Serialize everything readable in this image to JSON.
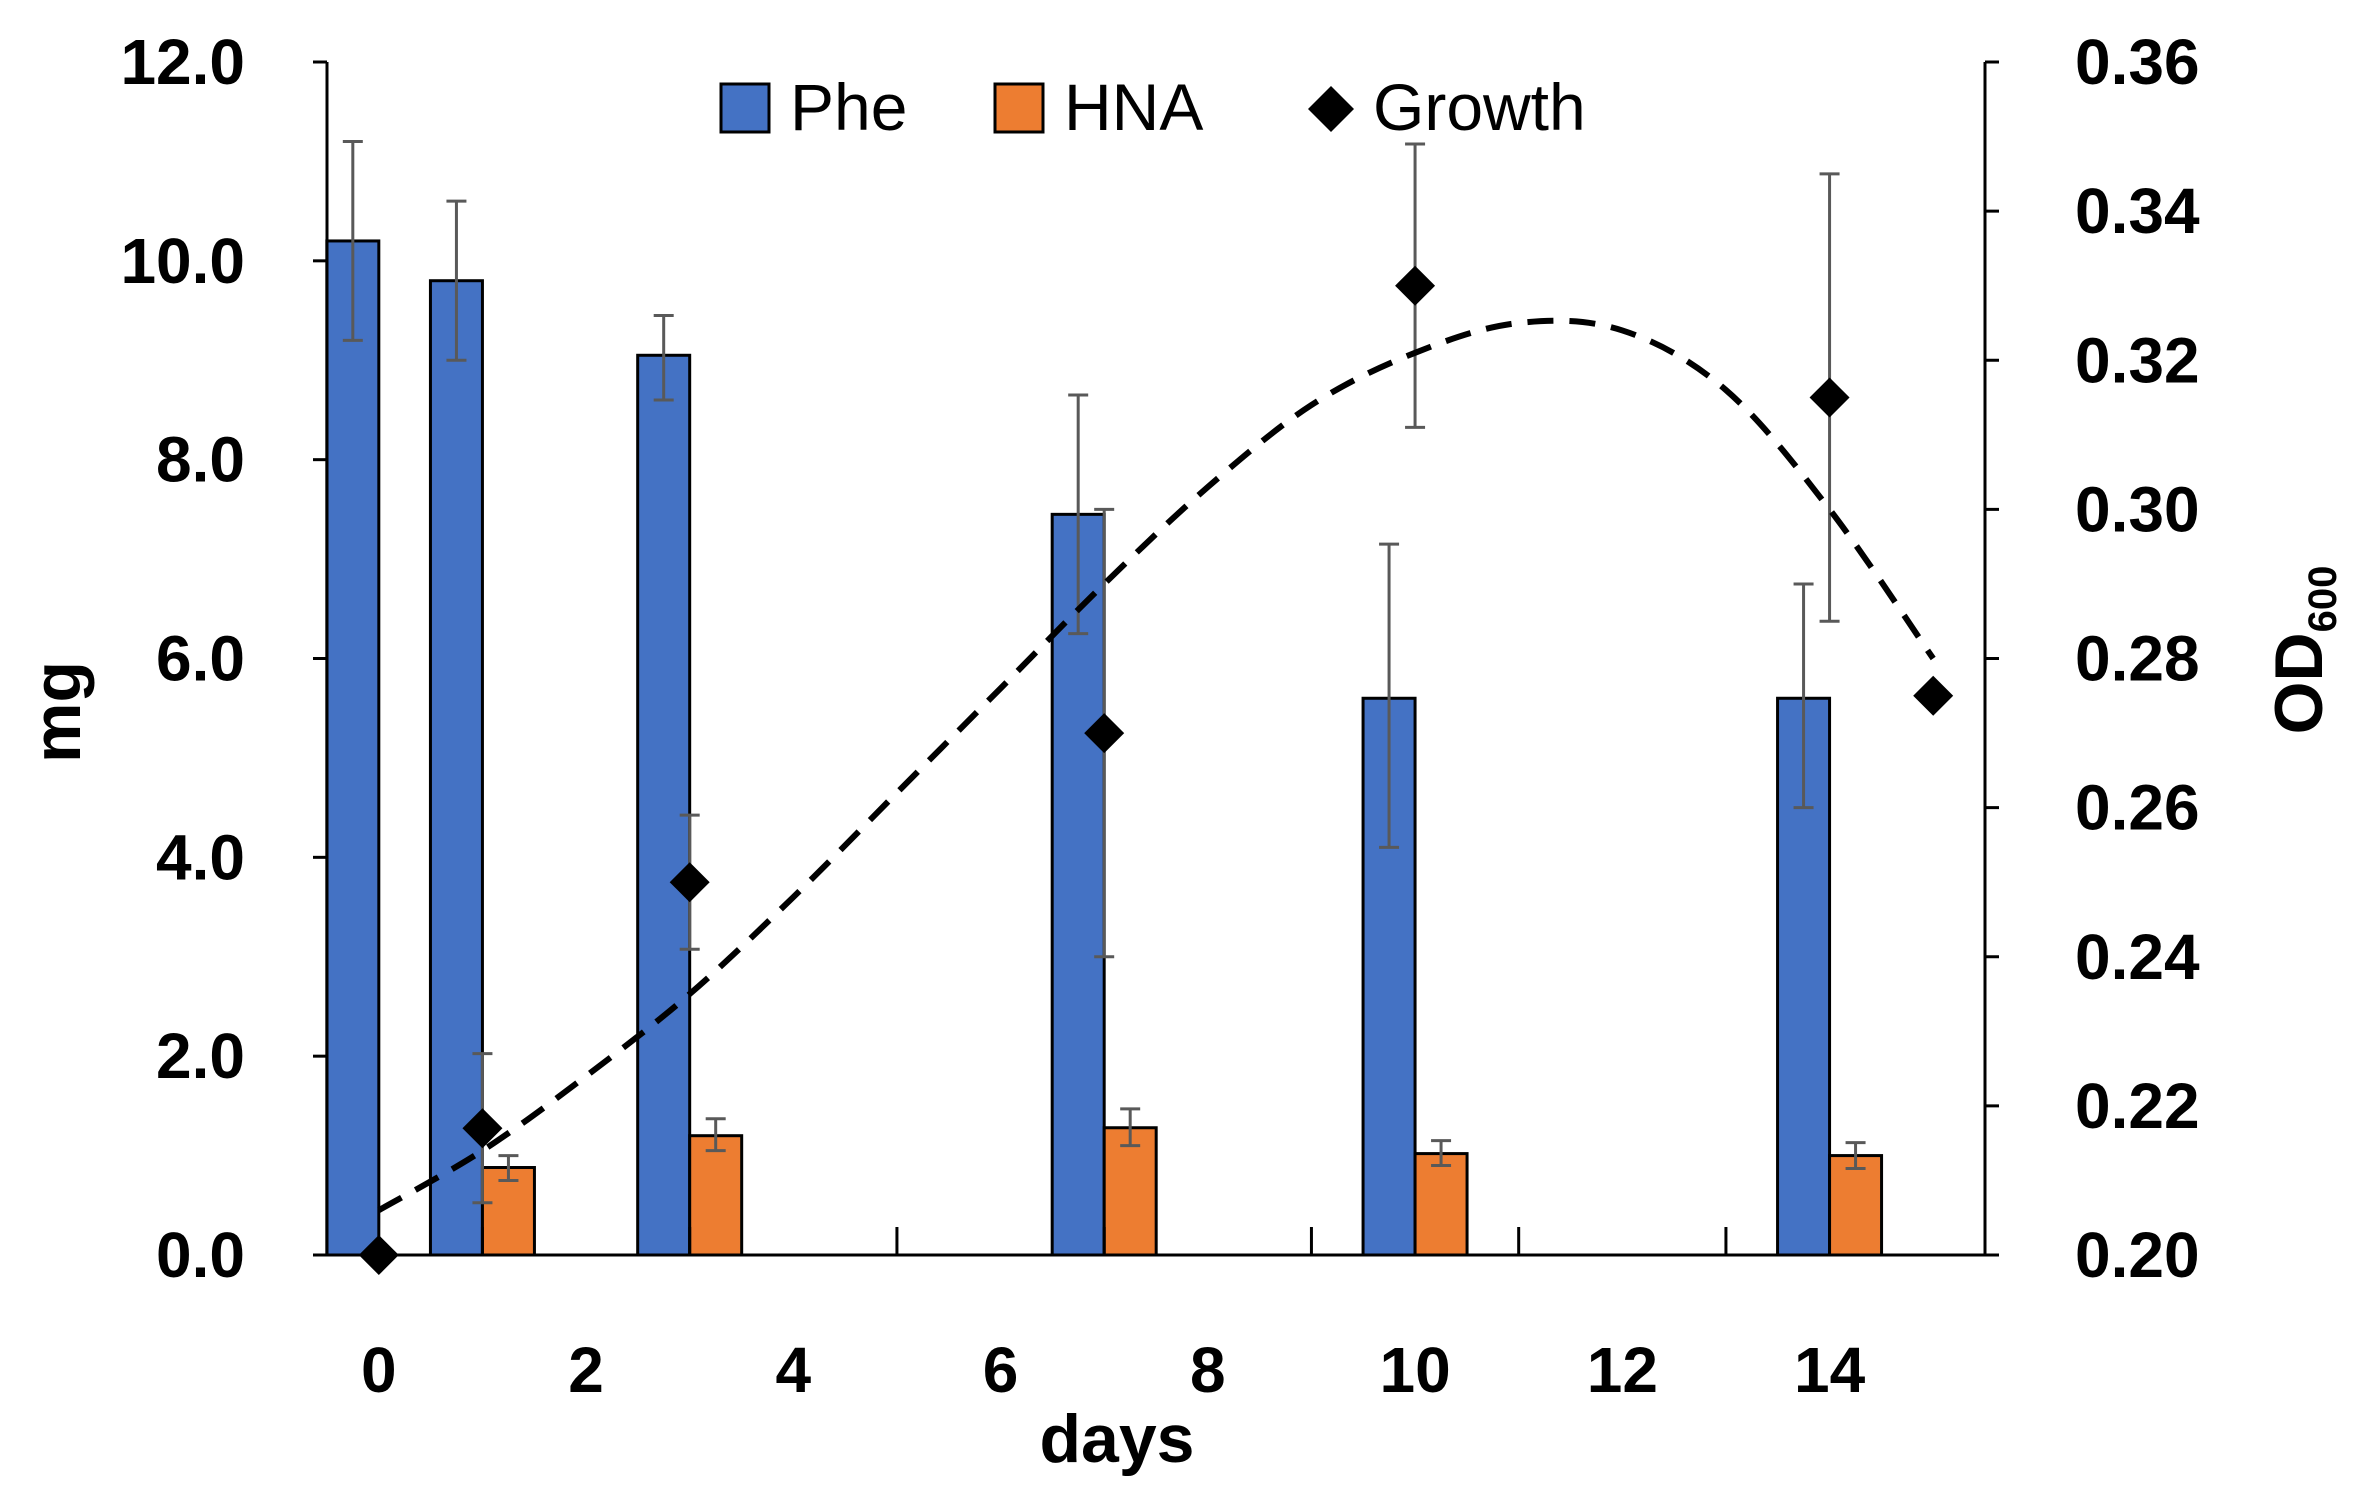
{
  "chart_data": {
    "type": "bar",
    "xlabel": "days",
    "ylabel": "mg",
    "y2label": {
      "main": "OD",
      "sub": "600"
    },
    "xlim": [
      -0.5,
      15.5
    ],
    "ylim": [
      0,
      12
    ],
    "y2lim": [
      0.2,
      0.36
    ],
    "x_ticks": [
      "0",
      "2",
      "4",
      "6",
      "8",
      "10",
      "12",
      "14"
    ],
    "y_ticks": [
      "0.0",
      "2.0",
      "4.0",
      "6.0",
      "8.0",
      "10.0",
      "12.0"
    ],
    "y2_ticks": [
      "0.20",
      "0.22",
      "0.24",
      "0.26",
      "0.28",
      "0.30",
      "0.32",
      "0.34",
      "0.36"
    ],
    "legend": {
      "position": "top-center",
      "items": [
        "Phe",
        "HNA",
        "Growth"
      ]
    },
    "colors": {
      "Phe": "#4472C4",
      "HNA": "#ED7D31",
      "Growth": "#000000",
      "error_bar": "#595959"
    },
    "series": [
      {
        "name": "Phe",
        "type": "bar",
        "axis": "left",
        "points": [
          {
            "x": 0,
            "y": 10.2,
            "err_low": 9.2,
            "err_high": 11.2
          },
          {
            "x": 1,
            "y": 9.8,
            "err_low": 9.0,
            "err_high": 10.6
          },
          {
            "x": 3,
            "y": 9.05,
            "err_low": 8.6,
            "err_high": 9.45
          },
          {
            "x": 7,
            "y": 7.45,
            "err_low": 6.25,
            "err_high": 8.65
          },
          {
            "x": 10,
            "y": 5.6,
            "err_low": 4.1,
            "err_high": 7.15
          },
          {
            "x": 14,
            "y": 5.6,
            "err_low": 4.5,
            "err_high": 6.75
          }
        ]
      },
      {
        "name": "HNA",
        "type": "bar",
        "axis": "left",
        "points": [
          {
            "x": 1,
            "y": 0.88,
            "err_low": 0.75,
            "err_high": 1.0
          },
          {
            "x": 3,
            "y": 1.2,
            "err_low": 1.05,
            "err_high": 1.37
          },
          {
            "x": 7,
            "y": 1.28,
            "err_low": 1.1,
            "err_high": 1.47
          },
          {
            "x": 10,
            "y": 1.02,
            "err_low": 0.9,
            "err_high": 1.15
          },
          {
            "x": 14,
            "y": 1.0,
            "err_low": 0.87,
            "err_high": 1.13
          }
        ]
      },
      {
        "name": "Growth",
        "type": "scatter",
        "axis": "right",
        "points": [
          {
            "x": 0,
            "y": 0.2,
            "err_low": null,
            "err_high": null
          },
          {
            "x": 1,
            "y": 0.217,
            "err_low": 0.207,
            "err_high": 0.227
          },
          {
            "x": 3,
            "y": 0.25,
            "err_low": 0.241,
            "err_high": 0.259
          },
          {
            "x": 7,
            "y": 0.27,
            "err_low": 0.24,
            "err_high": 0.3
          },
          {
            "x": 10,
            "y": 0.33,
            "err_low": 0.311,
            "err_high": 0.349
          },
          {
            "x": 14,
            "y": 0.315,
            "err_low": 0.285,
            "err_high": 0.345
          },
          {
            "x": 15,
            "y": 0.275,
            "err_low": null,
            "err_high": null
          }
        ]
      }
    ],
    "trendline": {
      "of": "Growth",
      "style": "dashed",
      "points": [
        {
          "x": 0,
          "y": 0.206
        },
        {
          "x": 1,
          "y": 0.214
        },
        {
          "x": 2,
          "y": 0.224
        },
        {
          "x": 3,
          "y": 0.235
        },
        {
          "x": 4,
          "y": 0.248
        },
        {
          "x": 5,
          "y": 0.262
        },
        {
          "x": 6,
          "y": 0.276
        },
        {
          "x": 7,
          "y": 0.29
        },
        {
          "x": 8,
          "y": 0.303
        },
        {
          "x": 9,
          "y": 0.314
        },
        {
          "x": 10,
          "y": 0.321
        },
        {
          "x": 11,
          "y": 0.325
        },
        {
          "x": 12,
          "y": 0.324
        },
        {
          "x": 13,
          "y": 0.316
        },
        {
          "x": 14,
          "y": 0.3
        },
        {
          "x": 15,
          "y": 0.28
        }
      ]
    }
  }
}
